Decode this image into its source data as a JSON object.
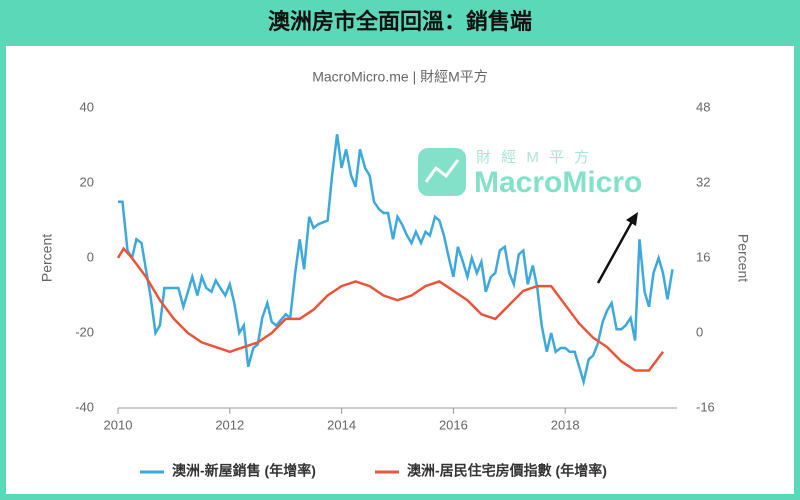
{
  "chart_data": {
    "type": "line",
    "title": "澳洲房市全面回溫：銷售端",
    "subtitle": "MacroMicro.me | 財經M平方",
    "watermark": {
      "top": "財 經 M 平 方",
      "brand": "MacroMicro"
    },
    "y_label": "Percent",
    "y2_label": "Percent",
    "xlim": [
      2010,
      2020
    ],
    "xticks": [
      2010,
      2012,
      2014,
      2016,
      2018
    ],
    "ylim": [
      -40,
      40
    ],
    "yticks": [
      -40,
      -20,
      0,
      20,
      40
    ],
    "y2lim": [
      -16,
      48
    ],
    "y2ticks": [
      -16,
      0,
      16,
      32,
      48
    ],
    "grid": false,
    "legend": "bottom",
    "series": [
      {
        "name": "澳洲-新屋銷售 (年增率)",
        "color": "#3ca8dc",
        "axis": "y",
        "x": [
          2010.0,
          2010.08,
          2010.17,
          2010.25,
          2010.33,
          2010.42,
          2010.5,
          2010.58,
          2010.67,
          2010.75,
          2010.83,
          2011.0,
          2011.08,
          2011.17,
          2011.25,
          2011.33,
          2011.42,
          2011.5,
          2011.58,
          2011.67,
          2011.75,
          2011.83,
          2011.92,
          2012.0,
          2012.08,
          2012.17,
          2012.25,
          2012.33,
          2012.42,
          2012.5,
          2012.58,
          2012.67,
          2012.75,
          2012.83,
          2013.0,
          2013.08,
          2013.17,
          2013.25,
          2013.33,
          2013.42,
          2013.5,
          2013.58,
          2013.75,
          2013.83,
          2013.92,
          2014.0,
          2014.08,
          2014.17,
          2014.25,
          2014.33,
          2014.42,
          2014.5,
          2014.58,
          2014.67,
          2014.75,
          2014.83,
          2014.92,
          2015.0,
          2015.08,
          2015.17,
          2015.25,
          2015.33,
          2015.42,
          2015.5,
          2015.58,
          2015.67,
          2015.75,
          2015.83,
          2015.92,
          2016.0,
          2016.08,
          2016.17,
          2016.25,
          2016.33,
          2016.42,
          2016.5,
          2016.58,
          2016.67,
          2016.75,
          2016.83,
          2016.92,
          2017.0,
          2017.08,
          2017.17,
          2017.25,
          2017.33,
          2017.42,
          2017.5,
          2017.58,
          2017.67,
          2017.75,
          2017.83,
          2017.92,
          2018.0,
          2018.08,
          2018.17,
          2018.25,
          2018.33,
          2018.42,
          2018.5,
          2018.58,
          2018.67,
          2018.75,
          2018.83,
          2018.92,
          2019.0,
          2019.08,
          2019.17,
          2019.25,
          2019.33,
          2019.42,
          2019.5,
          2019.58,
          2019.67,
          2019.75,
          2019.83,
          2019.92
        ],
        "values": [
          15,
          15,
          2,
          0,
          5,
          4,
          -3,
          -10,
          -20,
          -18,
          -8,
          -8,
          -8,
          -13,
          -9,
          -5,
          -10,
          -5,
          -8,
          -9,
          -6,
          -8,
          -10,
          -7,
          -12,
          -20,
          -18,
          -29,
          -24,
          -23,
          -16,
          -12,
          -17,
          -18,
          -15,
          -16,
          -4,
          5,
          -3,
          11,
          8,
          9,
          10,
          22,
          33,
          24,
          29,
          22,
          19,
          29,
          24,
          22,
          15,
          13,
          12,
          12,
          5,
          11,
          9,
          6,
          4,
          7,
          4,
          7,
          6,
          11,
          10,
          6,
          0,
          -5,
          3,
          -1,
          -5,
          0,
          -4,
          -1,
          -9,
          -5,
          -4,
          2,
          3,
          -4,
          -7,
          1,
          2,
          -7,
          -2,
          -8,
          -18,
          -25,
          -20,
          -25,
          -24,
          -24,
          -25,
          -25,
          -29,
          -33,
          -27,
          -26,
          -23,
          -17,
          -14,
          -12,
          -19,
          -19,
          -18,
          -16,
          -22,
          5,
          -9,
          -13,
          -4,
          0,
          -4,
          -11,
          -3
        ]
      },
      {
        "name": "澳洲-居民住宅房價指數 (年增率)",
        "color": "#e8553a",
        "axis": "y2",
        "x": [
          2010.0,
          2010.1,
          2010.25,
          2010.5,
          2010.75,
          2011.0,
          2011.25,
          2011.5,
          2011.75,
          2012.0,
          2012.25,
          2012.5,
          2012.75,
          2013.0,
          2013.25,
          2013.5,
          2013.75,
          2014.0,
          2014.25,
          2014.5,
          2014.75,
          2015.0,
          2015.25,
          2015.5,
          2015.75,
          2016.0,
          2016.25,
          2016.5,
          2016.75,
          2017.0,
          2017.25,
          2017.5,
          2017.75,
          2018.0,
          2018.25,
          2018.5,
          2018.75,
          2019.0,
          2019.25,
          2019.5,
          2019.75
        ],
        "values": [
          16,
          18,
          16,
          12,
          7,
          3,
          0,
          -2,
          -3,
          -4,
          -3,
          -2,
          0,
          3,
          3,
          5,
          8,
          10,
          11,
          10,
          8,
          7,
          8,
          10,
          11,
          9,
          7,
          4,
          3,
          6,
          9,
          10,
          10,
          6,
          2,
          -1,
          -3,
          -6,
          -8,
          -8,
          -4
        ]
      }
    ]
  }
}
